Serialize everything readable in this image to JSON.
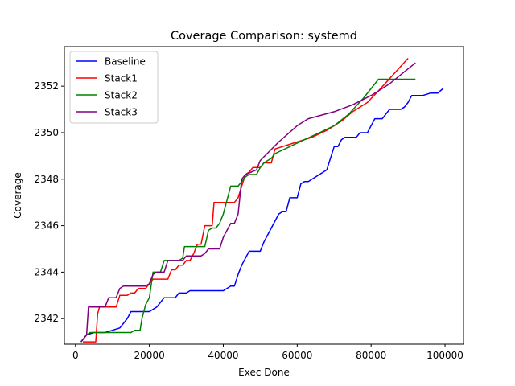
{
  "chart_data": {
    "type": "line",
    "title": "Coverage Comparison: systemd",
    "xlabel": "Exec Done",
    "ylabel": "Coverage",
    "xlim": [
      -3000,
      105000
    ],
    "ylim": [
      2340.9,
      2353.7
    ],
    "xticks": [
      0,
      20000,
      40000,
      60000,
      80000,
      100000
    ],
    "xtick_labels": [
      "0",
      "20000",
      "40000",
      "60000",
      "80000",
      "100000"
    ],
    "yticks": [
      2342,
      2344,
      2346,
      2348,
      2350,
      2352
    ],
    "ytick_labels": [
      "2342",
      "2344",
      "2346",
      "2348",
      "2350",
      "2352"
    ],
    "grid": false,
    "legend_position": "top-left",
    "series": [
      {
        "name": "Baseline",
        "color": "#0000ff",
        "points": [
          [
            1500,
            2341.0
          ],
          [
            3000,
            2341.3
          ],
          [
            5000,
            2341.4
          ],
          [
            8000,
            2341.4
          ],
          [
            10000,
            2341.5
          ],
          [
            12000,
            2341.6
          ],
          [
            13000,
            2341.8
          ],
          [
            14000,
            2342.0
          ],
          [
            15000,
            2342.3
          ],
          [
            20000,
            2342.3
          ],
          [
            21000,
            2342.4
          ],
          [
            22000,
            2342.5
          ],
          [
            23000,
            2342.7
          ],
          [
            24000,
            2342.9
          ],
          [
            27000,
            2342.9
          ],
          [
            28000,
            2343.1
          ],
          [
            30000,
            2343.1
          ],
          [
            31000,
            2343.2
          ],
          [
            40000,
            2343.2
          ],
          [
            41000,
            2343.3
          ],
          [
            42000,
            2343.4
          ],
          [
            43000,
            2343.4
          ],
          [
            44000,
            2343.9
          ],
          [
            45000,
            2344.3
          ],
          [
            46000,
            2344.6
          ],
          [
            47000,
            2344.9
          ],
          [
            50000,
            2344.9
          ],
          [
            51000,
            2345.3
          ],
          [
            52000,
            2345.6
          ],
          [
            53000,
            2345.9
          ],
          [
            54000,
            2346.2
          ],
          [
            55000,
            2346.5
          ],
          [
            56000,
            2346.6
          ],
          [
            57000,
            2346.6
          ],
          [
            58000,
            2347.2
          ],
          [
            60000,
            2347.2
          ],
          [
            61000,
            2347.8
          ],
          [
            62000,
            2347.9
          ],
          [
            63000,
            2347.9
          ],
          [
            64000,
            2348.0
          ],
          [
            65000,
            2348.1
          ],
          [
            66000,
            2348.2
          ],
          [
            67000,
            2348.3
          ],
          [
            68000,
            2348.4
          ],
          [
            69000,
            2348.9
          ],
          [
            70000,
            2349.4
          ],
          [
            71000,
            2349.4
          ],
          [
            72000,
            2349.7
          ],
          [
            73000,
            2349.8
          ],
          [
            76000,
            2349.8
          ],
          [
            77000,
            2350.0
          ],
          [
            79000,
            2350.0
          ],
          [
            80000,
            2350.3
          ],
          [
            81000,
            2350.6
          ],
          [
            83000,
            2350.6
          ],
          [
            84000,
            2350.8
          ],
          [
            85000,
            2351.0
          ],
          [
            88000,
            2351.0
          ],
          [
            89000,
            2351.1
          ],
          [
            90000,
            2351.3
          ],
          [
            91000,
            2351.6
          ],
          [
            94000,
            2351.6
          ],
          [
            96000,
            2351.7
          ],
          [
            98000,
            2351.7
          ],
          [
            99500,
            2351.9
          ]
        ]
      },
      {
        "name": "Stack1",
        "color": "#ff0000",
        "points": [
          [
            2000,
            2341.0
          ],
          [
            5500,
            2341.0
          ],
          [
            6000,
            2342.2
          ],
          [
            6500,
            2342.5
          ],
          [
            11000,
            2342.5
          ],
          [
            12000,
            2343.0
          ],
          [
            14000,
            2343.0
          ],
          [
            15000,
            2343.1
          ],
          [
            16000,
            2343.1
          ],
          [
            17000,
            2343.3
          ],
          [
            19000,
            2343.3
          ],
          [
            20000,
            2343.5
          ],
          [
            21000,
            2343.7
          ],
          [
            25000,
            2343.7
          ],
          [
            26000,
            2344.1
          ],
          [
            27000,
            2344.1
          ],
          [
            28000,
            2344.3
          ],
          [
            29000,
            2344.3
          ],
          [
            30000,
            2344.5
          ],
          [
            31000,
            2344.5
          ],
          [
            32000,
            2344.8
          ],
          [
            33000,
            2345.2
          ],
          [
            34000,
            2345.2
          ],
          [
            35000,
            2346.0
          ],
          [
            37000,
            2346.0
          ],
          [
            37500,
            2347.0
          ],
          [
            42000,
            2347.0
          ],
          [
            43000,
            2347.0
          ],
          [
            44000,
            2347.2
          ],
          [
            45000,
            2347.7
          ],
          [
            46000,
            2348.2
          ],
          [
            47000,
            2348.3
          ],
          [
            48000,
            2348.5
          ],
          [
            50000,
            2348.5
          ],
          [
            51000,
            2348.7
          ],
          [
            53000,
            2348.7
          ],
          [
            54000,
            2349.3
          ],
          [
            60000,
            2349.6
          ],
          [
            64000,
            2349.8
          ],
          [
            68000,
            2350.1
          ],
          [
            72000,
            2350.5
          ],
          [
            75000,
            2350.9
          ],
          [
            79000,
            2351.3
          ],
          [
            82000,
            2351.8
          ],
          [
            86000,
            2352.5
          ],
          [
            90000,
            2353.2
          ]
        ]
      },
      {
        "name": "Stack2",
        "color": "#008000",
        "points": [
          [
            1500,
            2341.0
          ],
          [
            3000,
            2341.3
          ],
          [
            4000,
            2341.4
          ],
          [
            15000,
            2341.4
          ],
          [
            16000,
            2341.5
          ],
          [
            17500,
            2341.5
          ],
          [
            18000,
            2342.0
          ],
          [
            19000,
            2342.6
          ],
          [
            20000,
            2342.9
          ],
          [
            21000,
            2344.0
          ],
          [
            23000,
            2344.0
          ],
          [
            24000,
            2344.5
          ],
          [
            28000,
            2344.5
          ],
          [
            29000,
            2344.6
          ],
          [
            29500,
            2345.1
          ],
          [
            35000,
            2345.1
          ],
          [
            36000,
            2345.8
          ],
          [
            37000,
            2345.9
          ],
          [
            38000,
            2345.9
          ],
          [
            39000,
            2346.1
          ],
          [
            40000,
            2346.5
          ],
          [
            41000,
            2347.1
          ],
          [
            42000,
            2347.7
          ],
          [
            44000,
            2347.7
          ],
          [
            45000,
            2347.9
          ],
          [
            46000,
            2348.1
          ],
          [
            47000,
            2348.2
          ],
          [
            49000,
            2348.2
          ],
          [
            50000,
            2348.5
          ],
          [
            51000,
            2348.7
          ],
          [
            53000,
            2348.9
          ],
          [
            54000,
            2349.1
          ],
          [
            58000,
            2349.4
          ],
          [
            62000,
            2349.7
          ],
          [
            66000,
            2350.0
          ],
          [
            70000,
            2350.3
          ],
          [
            74000,
            2350.8
          ],
          [
            78000,
            2351.5
          ],
          [
            82000,
            2352.3
          ],
          [
            92000,
            2352.3
          ]
        ]
      },
      {
        "name": "Stack3",
        "color": "#800080",
        "points": [
          [
            1500,
            2341.0
          ],
          [
            3000,
            2341.3
          ],
          [
            3500,
            2342.5
          ],
          [
            8000,
            2342.5
          ],
          [
            9000,
            2342.9
          ],
          [
            11000,
            2342.9
          ],
          [
            12000,
            2343.3
          ],
          [
            13000,
            2343.4
          ],
          [
            19000,
            2343.4
          ],
          [
            20000,
            2343.5
          ],
          [
            21000,
            2343.9
          ],
          [
            22000,
            2344.0
          ],
          [
            24000,
            2344.0
          ],
          [
            25000,
            2344.5
          ],
          [
            29000,
            2344.5
          ],
          [
            30000,
            2344.7
          ],
          [
            34000,
            2344.7
          ],
          [
            35000,
            2344.8
          ],
          [
            36000,
            2345.0
          ],
          [
            39000,
            2345.0
          ],
          [
            40000,
            2345.5
          ],
          [
            41000,
            2345.8
          ],
          [
            42000,
            2346.1
          ],
          [
            43000,
            2346.1
          ],
          [
            44000,
            2346.5
          ],
          [
            45000,
            2348.0
          ],
          [
            46000,
            2348.2
          ],
          [
            49000,
            2348.4
          ],
          [
            50000,
            2348.8
          ],
          [
            55000,
            2349.6
          ],
          [
            60000,
            2350.3
          ],
          [
            63000,
            2350.6
          ],
          [
            70000,
            2350.9
          ],
          [
            75000,
            2351.2
          ],
          [
            80000,
            2351.6
          ],
          [
            85000,
            2352.1
          ],
          [
            92000,
            2353.0
          ]
        ]
      }
    ]
  }
}
